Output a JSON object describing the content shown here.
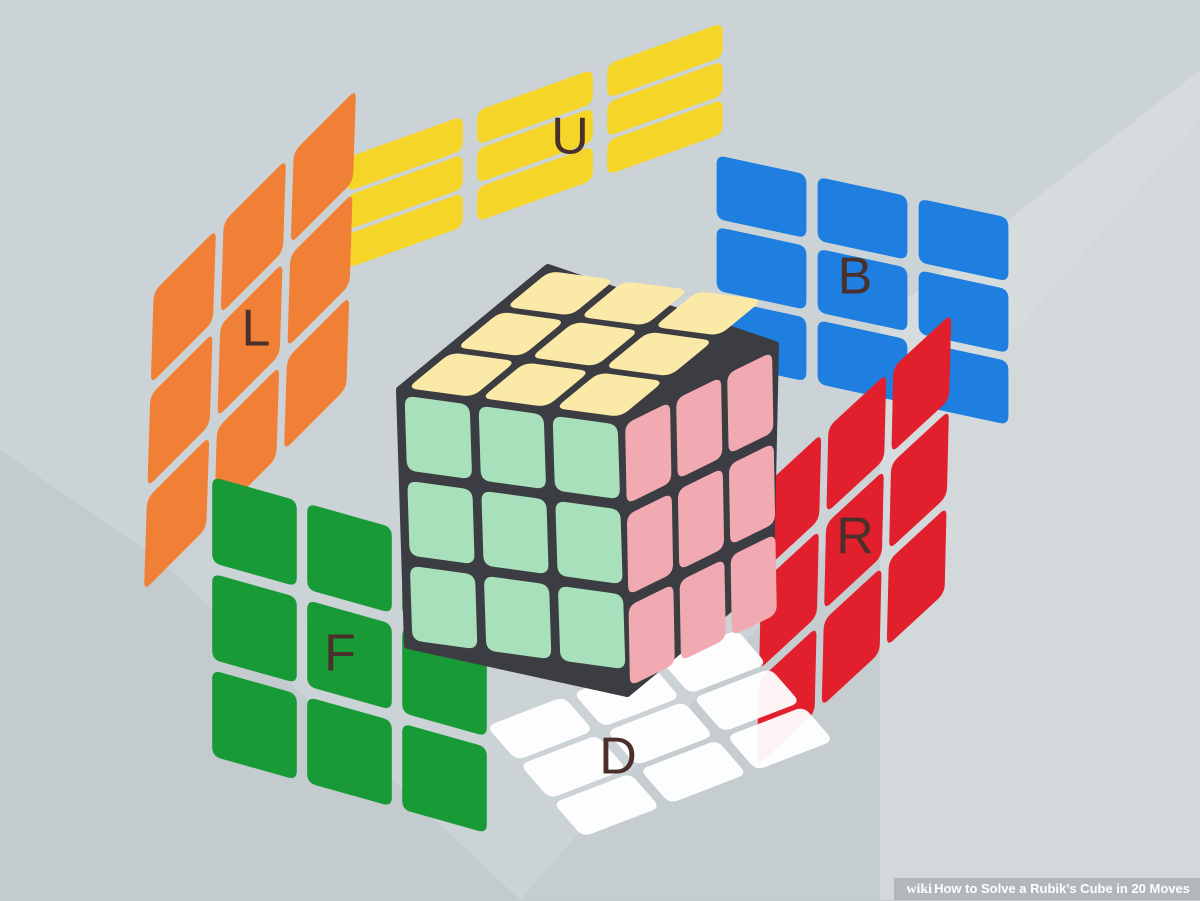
{
  "faces": [
    {
      "id": "up",
      "letter": "U",
      "color": "#f6d529"
    },
    {
      "id": "back",
      "letter": "B",
      "color": "#1e7fe0"
    },
    {
      "id": "left",
      "letter": "L",
      "color": "#f08036"
    },
    {
      "id": "right",
      "letter": "R",
      "color": "#e2202d"
    },
    {
      "id": "front",
      "letter": "F",
      "color": "#189a36"
    },
    {
      "id": "down",
      "letter": "D",
      "color": "#ffffff"
    }
  ],
  "cube": {
    "top_color": "#fbe9a7",
    "front_color": "#a7e0bb",
    "side_color": "#f2aab2",
    "frame_color": "#3c3d42"
  },
  "watermark": {
    "brand": "wiki",
    "title": "How to Solve a Rubik's Cube in 20 Moves"
  }
}
